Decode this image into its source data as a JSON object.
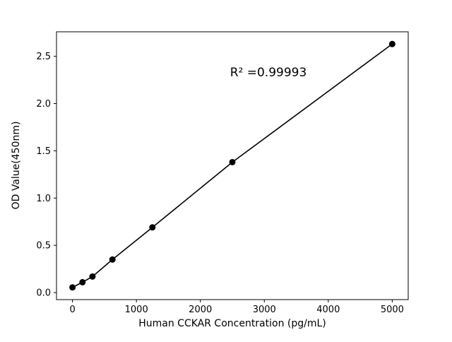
{
  "chart_data": {
    "type": "scatter",
    "title": "",
    "xlabel": "Human CCKAR Concentration (pg/mL)",
    "ylabel": "OD Value(450nm)",
    "annotation": "R² =0.99993",
    "x": [
      0,
      156.25,
      312.5,
      625,
      1250,
      2500,
      5000
    ],
    "y": [
      0.055,
      0.11,
      0.17,
      0.35,
      0.69,
      1.38,
      2.63
    ],
    "xticks": [
      0,
      1000,
      2000,
      3000,
      4000,
      5000
    ],
    "yticks": [
      "0.0",
      "0.5",
      "1.0",
      "1.5",
      "2.0",
      "2.5"
    ],
    "xlim": [
      -250,
      5250
    ],
    "ylim": [
      -0.074,
      2.759
    ],
    "line_color": "#000000",
    "marker_color": "#000000",
    "background_color": "#ffffff",
    "grid": false,
    "legend": null
  }
}
